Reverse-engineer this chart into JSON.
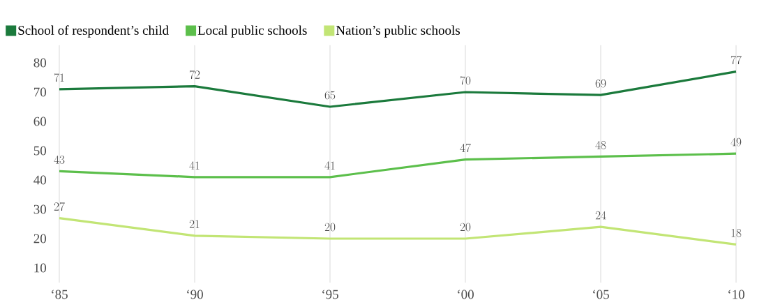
{
  "chart_data": {
    "type": "line",
    "categories": [
      "‘85",
      "‘90",
      "‘95",
      "‘00",
      "‘05",
      "‘10"
    ],
    "series": [
      {
        "name": "School of respondent’s child",
        "color": "#1b7a3c",
        "values": [
          71,
          72,
          65,
          70,
          69,
          77
        ]
      },
      {
        "name": "Local public schools",
        "color": "#5cbf4b",
        "values": [
          43,
          41,
          41,
          47,
          48,
          49
        ]
      },
      {
        "name": "Nation’s public schools",
        "color": "#c2e575",
        "values": [
          27,
          21,
          20,
          20,
          24,
          18
        ]
      }
    ],
    "ylim": [
      5,
      86
    ],
    "yticks": [
      10,
      20,
      30,
      40,
      50,
      60,
      70,
      80
    ],
    "grid": "x",
    "legend": "top",
    "data_labels": true,
    "marker": "none",
    "line_style": "solid"
  }
}
